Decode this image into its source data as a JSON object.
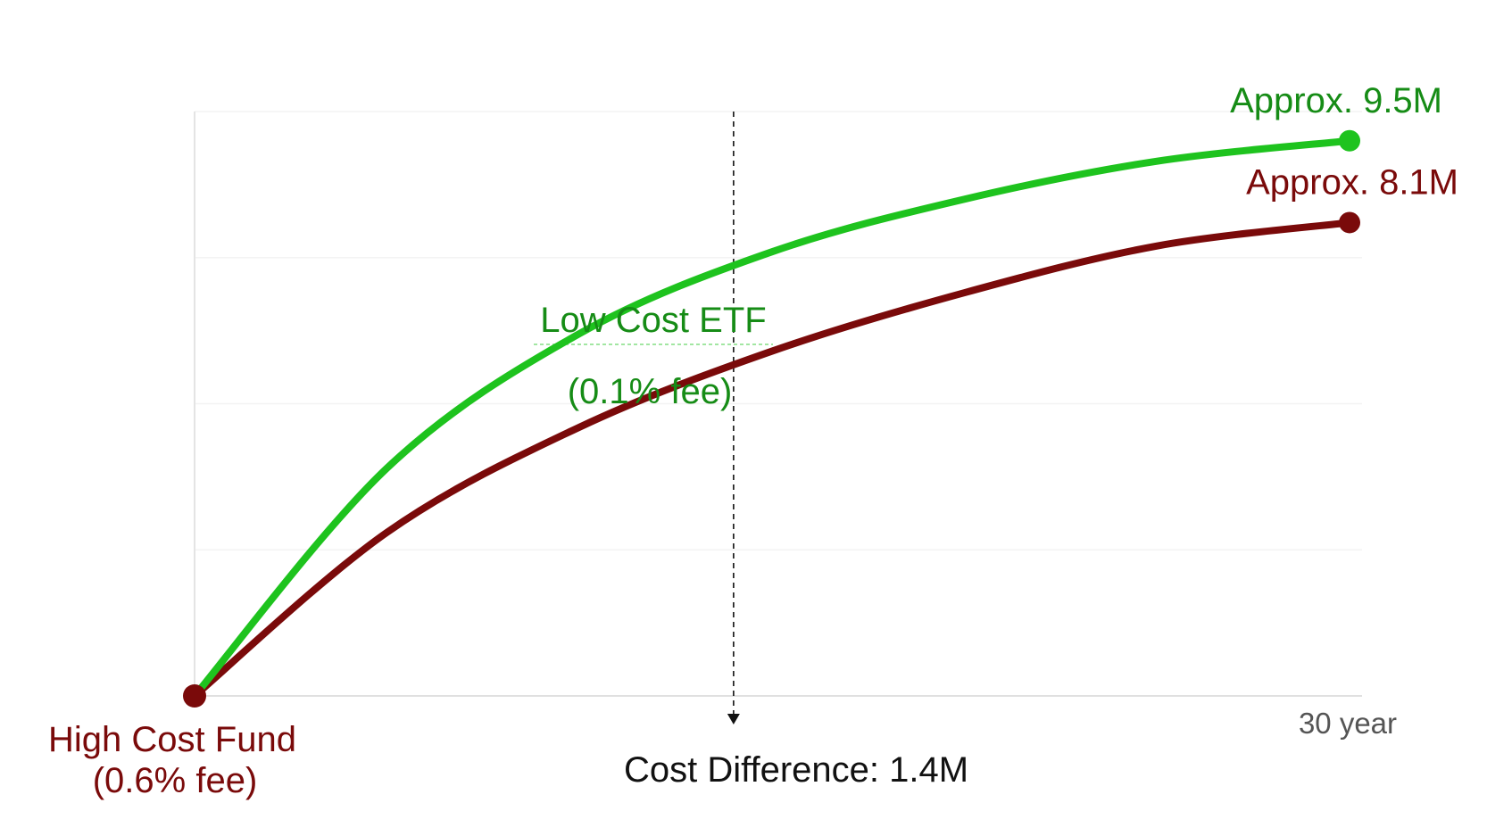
{
  "chart_data": {
    "type": "line",
    "x_tick_label": "30 year",
    "xlim": [
      0,
      30
    ],
    "ylim": [
      0,
      10
    ],
    "grid": true,
    "series": [
      {
        "name": "Low Cost ETF",
        "fee": "(0.1% fee)",
        "color": "#1ec31e",
        "x": [
          0,
          5,
          10,
          15,
          20,
          25,
          30
        ],
        "values": [
          0,
          3.9,
          6.2,
          7.6,
          8.5,
          9.15,
          9.5
        ],
        "end_label": "Approx. 9.5M"
      },
      {
        "name": "High Cost Fund",
        "fee": "(0.6% fee)",
        "color": "#7a0a0a",
        "x": [
          0,
          5,
          10,
          15,
          20,
          25,
          30
        ],
        "values": [
          0,
          2.8,
          4.6,
          5.9,
          6.9,
          7.7,
          8.1
        ],
        "end_label": "Approx. 8.1M"
      }
    ],
    "annotation": {
      "label": "Cost Difference: 1.4M",
      "x": 14
    }
  }
}
